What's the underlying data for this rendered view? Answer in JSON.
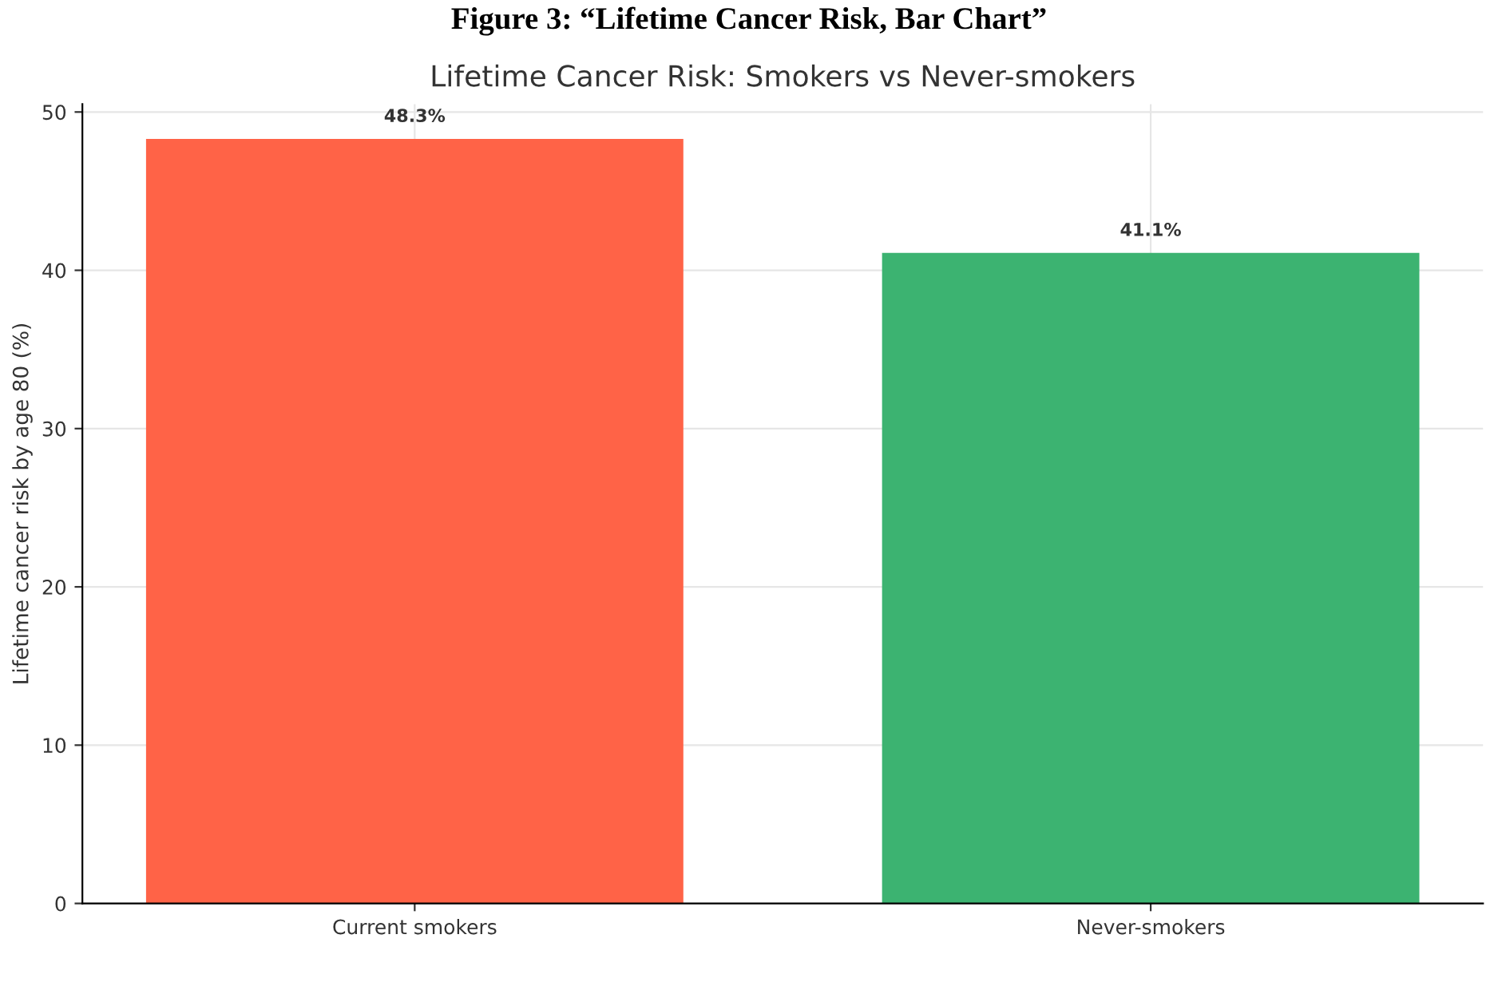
{
  "chart_data": {
    "type": "bar",
    "title": "Figure 3: “Lifetime Cancer Risk, Bar Chart”",
    "subtitle": "Lifetime Cancer Risk: Smokers vs Never-smokers",
    "ylabel": "Lifetime cancer risk by age 80 (%)",
    "categories": [
      "Current smokers",
      "Never-smokers"
    ],
    "values": [
      48.3,
      41.1
    ],
    "colors": [
      "#ff6347",
      "#3cb371"
    ],
    "value_labels": [
      "48.3%",
      "41.1%"
    ],
    "ylim": [
      0,
      50.5
    ],
    "yticks": [
      0,
      10,
      20,
      30,
      40,
      50
    ],
    "grid": true
  }
}
